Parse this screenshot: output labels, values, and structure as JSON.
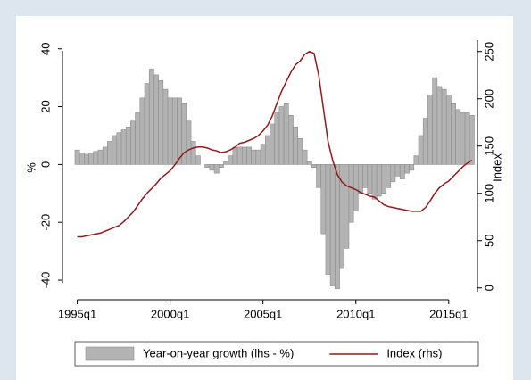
{
  "chart_data": {
    "type": "bar",
    "ylabel": "%",
    "y2label": "Index",
    "x": [
      1995,
      1995.25,
      1995.5,
      1995.75,
      1996,
      1996.25,
      1996.5,
      1996.75,
      1997,
      1997.25,
      1997.5,
      1997.75,
      1998,
      1998.25,
      1998.5,
      1998.75,
      1999,
      1999.25,
      1999.5,
      1999.75,
      2000,
      2000.25,
      2000.5,
      2000.75,
      2001,
      2001.25,
      2001.5,
      2001.75,
      2002,
      2002.25,
      2002.5,
      2002.75,
      2003,
      2003.25,
      2003.5,
      2003.75,
      2004,
      2004.25,
      2004.5,
      2004.75,
      2005,
      2005.25,
      2005.5,
      2005.75,
      2006,
      2006.25,
      2006.5,
      2006.75,
      2007,
      2007.25,
      2007.5,
      2007.75,
      2008,
      2008.25,
      2008.5,
      2008.75,
      2009,
      2009.25,
      2009.5,
      2009.75,
      2010,
      2010.25,
      2010.5,
      2010.75,
      2011,
      2011.25,
      2011.5,
      2011.75,
      2012,
      2012.25,
      2012.5,
      2012.75,
      2013,
      2013.25,
      2013.5,
      2013.75,
      2014,
      2014.25,
      2014.5,
      2014.75,
      2015,
      2015.25,
      2015.5,
      2015.75,
      2016,
      2016.25
    ],
    "series": [
      {
        "name": "Year-on-year growth (lhs - %)",
        "type": "bar",
        "color": "#b3b3b3",
        "values": [
          5,
          4,
          3.5,
          4,
          4.5,
          5,
          6,
          8,
          10,
          11,
          12,
          13,
          15,
          18,
          23,
          28,
          33,
          31,
          29,
          26,
          23,
          23,
          23,
          21,
          15,
          8,
          3,
          0,
          -1,
          -2,
          -3,
          -1,
          1,
          3,
          6,
          6,
          6,
          6,
          5,
          5,
          7,
          10,
          14,
          18,
          20,
          21,
          17,
          13,
          9,
          5,
          1,
          -1,
          -8,
          -24,
          -38,
          -42,
          -43,
          -36,
          -29,
          -20,
          -16,
          -10,
          -8,
          -10,
          -12,
          -11,
          -10,
          -8,
          -6,
          -4,
          -5,
          -3,
          -2,
          3,
          10,
          16,
          24,
          30,
          27,
          26,
          24,
          21,
          19,
          18,
          18,
          17
        ]
      },
      {
        "name": "Index (rhs)",
        "type": "line",
        "axis": "y2",
        "color": "#90191c",
        "values": [
          54,
          54,
          55,
          56,
          57,
          58,
          60,
          62,
          64,
          66,
          70,
          75,
          80,
          87,
          94,
          100,
          105,
          110,
          116,
          120,
          124,
          130,
          137,
          143,
          146,
          148,
          149,
          149,
          148,
          146,
          145,
          143,
          144,
          146,
          149,
          153,
          154,
          156,
          158,
          161,
          166,
          172,
          182,
          195,
          208,
          218,
          228,
          236,
          240,
          247,
          250,
          248,
          225,
          190,
          155,
          135,
          120,
          112,
          108,
          106,
          104,
          101,
          99,
          97,
          96,
          92,
          88,
          86,
          85,
          84,
          83,
          82,
          81,
          81,
          81,
          85,
          92,
          100,
          106,
          110,
          113,
          118,
          123,
          128,
          132,
          135
        ]
      }
    ],
    "xlim": [
      1994.3,
      2016.45
    ],
    "xticks": [
      {
        "value": 1995,
        "label": "1995q1"
      },
      {
        "value": 2000,
        "label": "2000q1"
      },
      {
        "value": 2005,
        "label": "2005q1"
      },
      {
        "value": 2010,
        "label": "2010q1"
      },
      {
        "value": 2015,
        "label": "2015q1"
      }
    ],
    "ylim": [
      -44,
      43
    ],
    "yticks": [
      -40,
      -20,
      0,
      20,
      40
    ],
    "y2lim": [
      -4,
      262
    ],
    "y2ticks": [
      0,
      50,
      100,
      150,
      200,
      250
    ],
    "grid": false,
    "legend": "bottom"
  }
}
